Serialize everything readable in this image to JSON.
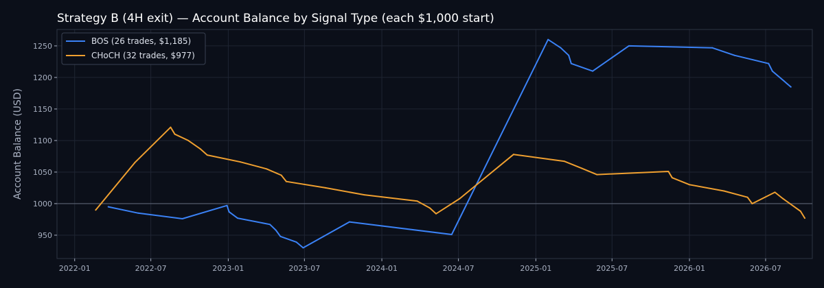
{
  "chart_data": {
    "type": "line",
    "title": "Strategy B (4H exit) — Account Balance by Signal Type (each $1,000 start)",
    "xlabel": "",
    "ylabel": "Account Balance (USD)",
    "xlim": [
      "2021-11-20",
      "2026-10-20"
    ],
    "ylim": [
      913,
      1276
    ],
    "x_ticks": [
      "2022-01",
      "2022-07",
      "2023-01",
      "2023-07",
      "2024-01",
      "2024-07",
      "2025-01",
      "2025-07",
      "2026-01",
      "2026-07"
    ],
    "y_ticks": [
      950,
      1000,
      1050,
      1100,
      1150,
      1200,
      1250
    ],
    "reference_line": 1000,
    "grid": true,
    "legend_position": "top-left",
    "series": [
      {
        "name": "BOS (26 trades, $1,185)",
        "color": "#3b82f6",
        "points": [
          [
            "2022-03-22",
            995
          ],
          [
            "2022-06-01",
            985
          ],
          [
            "2022-09-14",
            976
          ],
          [
            "2022-12-29",
            997
          ],
          [
            "2023-01-03",
            987
          ],
          [
            "2023-01-23",
            977
          ],
          [
            "2023-04-10",
            967
          ],
          [
            "2023-04-24",
            958
          ],
          [
            "2023-05-05",
            948
          ],
          [
            "2023-06-12",
            939
          ],
          [
            "2023-06-28",
            930
          ],
          [
            "2023-10-16",
            971
          ],
          [
            "2024-06-15",
            951
          ],
          [
            "2025-01-30",
            1260
          ],
          [
            "2025-03-01",
            1247
          ],
          [
            "2025-03-20",
            1235
          ],
          [
            "2025-03-26",
            1222
          ],
          [
            "2025-05-16",
            1210
          ],
          [
            "2025-08-10",
            1250
          ],
          [
            "2026-02-24",
            1247
          ],
          [
            "2026-04-18",
            1235
          ],
          [
            "2026-07-08",
            1222
          ],
          [
            "2026-07-17",
            1210
          ],
          [
            "2026-08-30",
            1185
          ]
        ]
      },
      {
        "name": "CHoCH (32 trades, $977)",
        "color": "#f0a030",
        "points": [
          [
            "2022-02-20",
            990
          ],
          [
            "2022-05-24",
            1065
          ],
          [
            "2022-08-17",
            1121
          ],
          [
            "2022-08-27",
            1110
          ],
          [
            "2022-09-28",
            1100
          ],
          [
            "2022-10-26",
            1087
          ],
          [
            "2022-11-12",
            1077
          ],
          [
            "2023-01-30",
            1066
          ],
          [
            "2023-04-02",
            1055
          ],
          [
            "2023-05-07",
            1045
          ],
          [
            "2023-05-19",
            1035
          ],
          [
            "2023-08-20",
            1025
          ],
          [
            "2023-11-20",
            1014
          ],
          [
            "2024-03-25",
            1004
          ],
          [
            "2024-04-24",
            993
          ],
          [
            "2024-05-09",
            984
          ],
          [
            "2024-07-04",
            1008
          ],
          [
            "2024-11-09",
            1078
          ],
          [
            "2025-03-10",
            1067
          ],
          [
            "2025-04-20",
            1056
          ],
          [
            "2025-05-26",
            1046
          ],
          [
            "2025-11-12",
            1051
          ],
          [
            "2025-11-21",
            1041
          ],
          [
            "2026-01-01",
            1030
          ],
          [
            "2026-03-24",
            1020
          ],
          [
            "2026-05-19",
            1010
          ],
          [
            "2026-05-30",
            1000
          ],
          [
            "2026-07-23",
            1018
          ],
          [
            "2026-08-11",
            1008
          ],
          [
            "2026-09-22",
            988
          ],
          [
            "2026-10-02",
            977
          ]
        ]
      }
    ]
  }
}
